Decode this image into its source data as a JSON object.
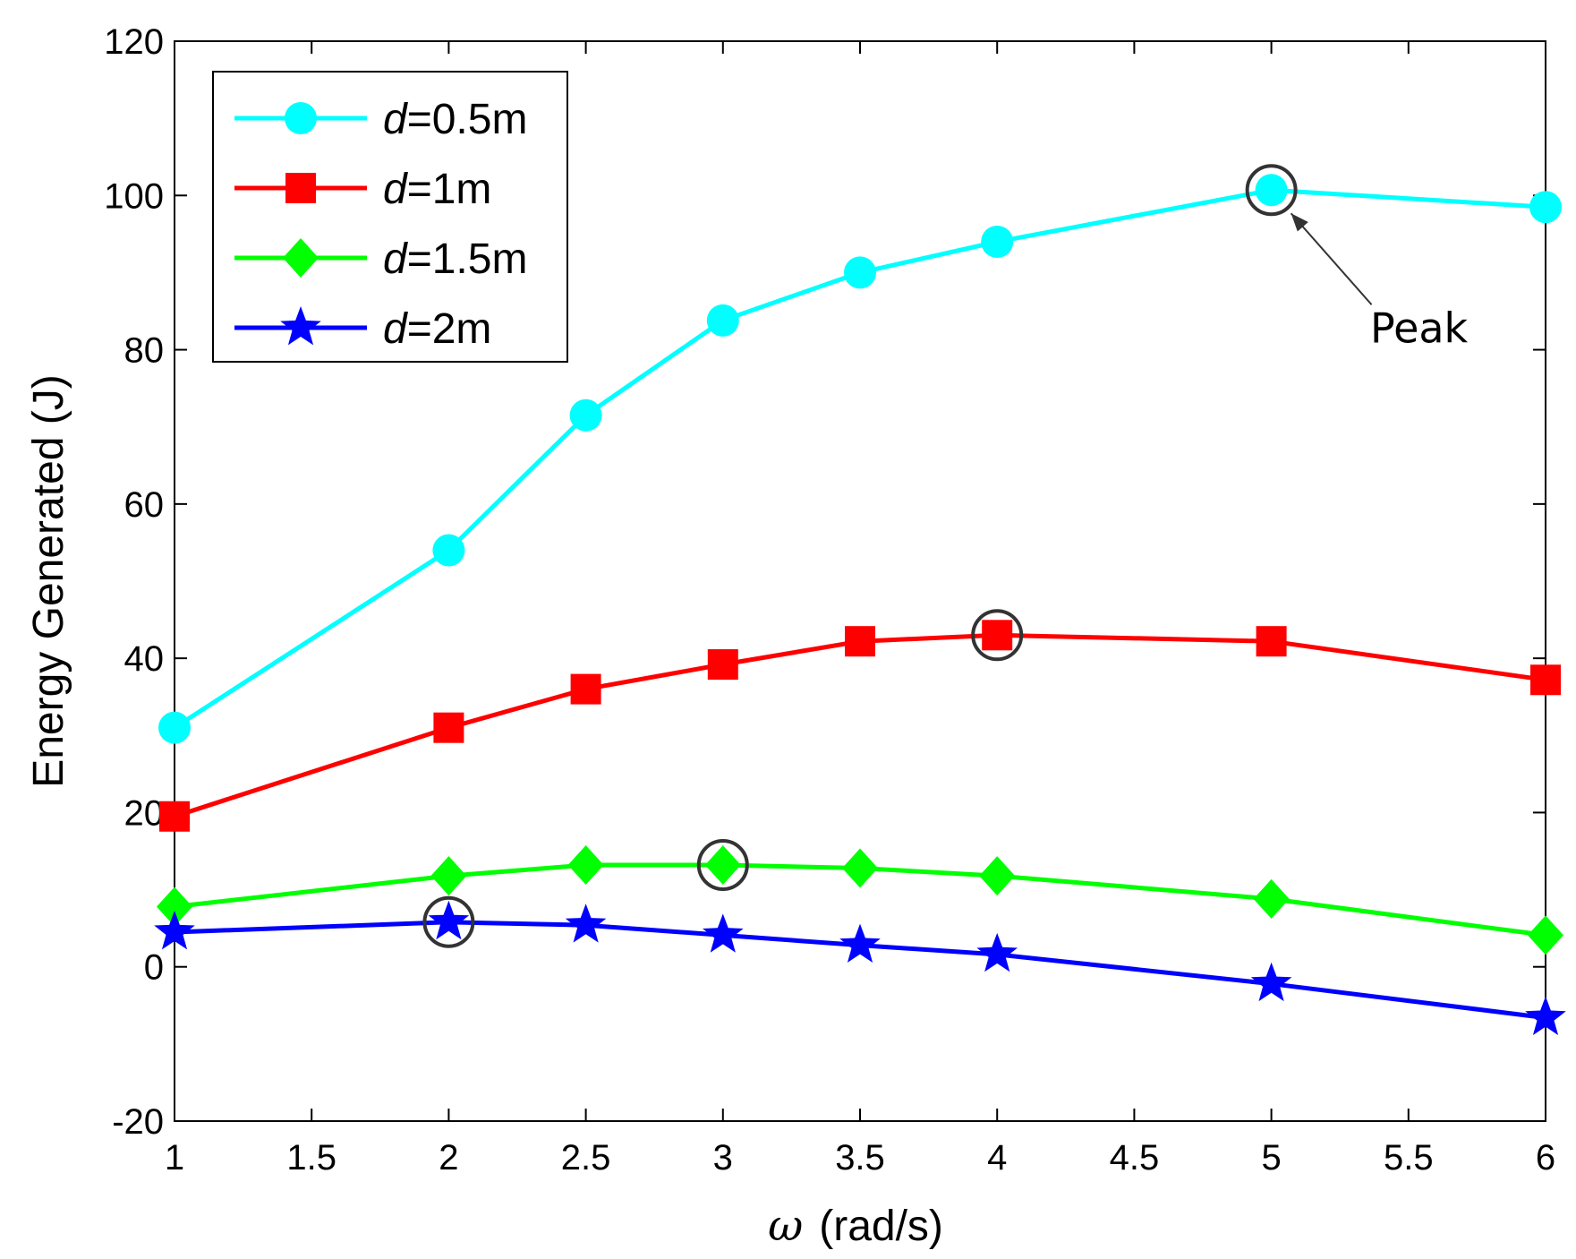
{
  "chart_data": {
    "type": "line",
    "xlabel_symbol": "ω",
    "xlabel_unit": "(rad/s)",
    "ylabel": "Energy Generated (J)",
    "xlim": [
      1,
      6
    ],
    "ylim": [
      -20,
      120
    ],
    "xticks": [
      1,
      1.5,
      2,
      2.5,
      3,
      3.5,
      4,
      4.5,
      5,
      5.5,
      6
    ],
    "xtick_labels": [
      "1",
      "1.5",
      "2",
      "2.5",
      "3",
      "3.5",
      "4",
      "4.5",
      "5",
      "5.5",
      "6"
    ],
    "yticks": [
      -20,
      0,
      20,
      40,
      60,
      80,
      100,
      120
    ],
    "ytick_labels": [
      "-20",
      "0",
      "20",
      "40",
      "60",
      "80",
      "100",
      "120"
    ],
    "grid": false,
    "legend_position": "top-left",
    "x": [
      1,
      2,
      2.5,
      3,
      3.5,
      4,
      5,
      6
    ],
    "series": [
      {
        "name_var": "d",
        "name_rest": "=0.5m",
        "color": "#00ffff",
        "marker": "circle",
        "values": [
          31,
          54,
          71.5,
          83.8,
          90,
          94,
          100.7,
          98.5
        ],
        "peak_x": 5
      },
      {
        "name_var": "d",
        "name_rest": "=1m",
        "color": "#ff0000",
        "marker": "square",
        "values": [
          19.5,
          31,
          36,
          39.2,
          42.2,
          43,
          42.2,
          37.2
        ],
        "peak_x": 4
      },
      {
        "name_var": "d",
        "name_rest": "=1.5m",
        "color": "#00ff00",
        "marker": "diamond",
        "values": [
          7.8,
          11.8,
          13.2,
          13.2,
          12.8,
          11.8,
          8.8,
          4.1
        ],
        "peak_x": 3
      },
      {
        "name_var": "d",
        "name_rest": "=2m",
        "color": "#0000ff",
        "marker": "star",
        "values": [
          4.5,
          5.8,
          5.4,
          4.1,
          2.8,
          1.6,
          -2.2,
          -6.6
        ],
        "peak_x": 2
      }
    ],
    "annotation": {
      "text": "Peak",
      "x": 5,
      "y": 100.7
    },
    "peak_marker_color": "#333333"
  }
}
